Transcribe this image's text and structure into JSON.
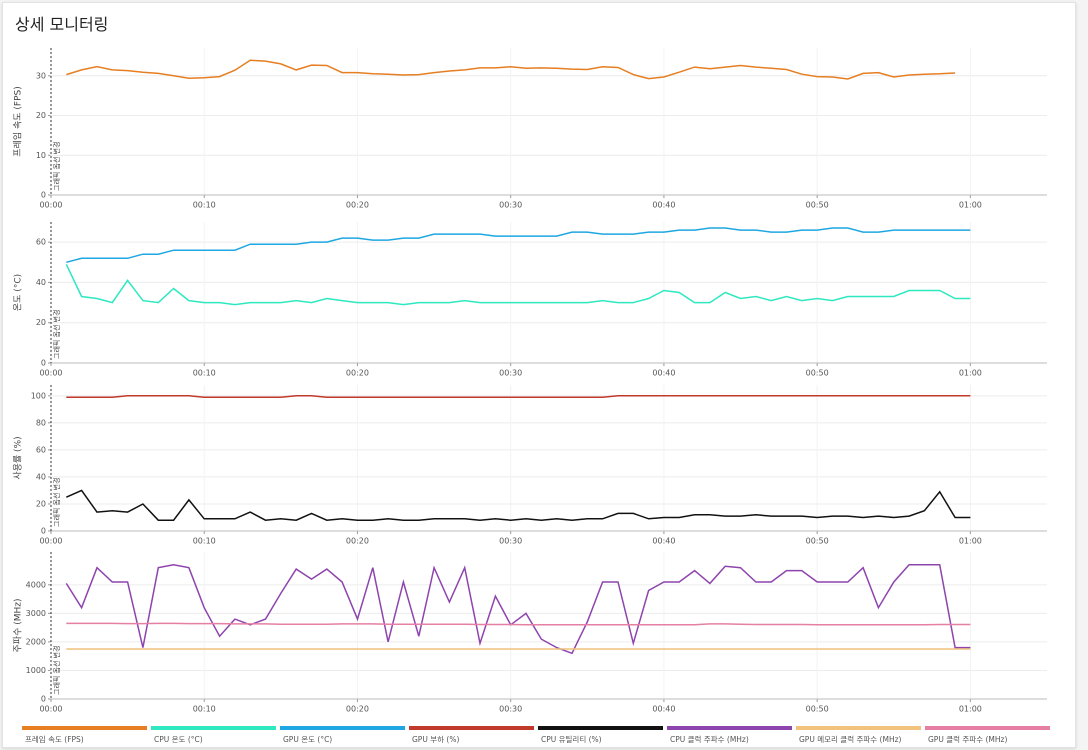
{
  "title": "상세 모니터링",
  "chart_data": [
    {
      "type": "line",
      "ylabel": "프레임 속도 (FPS)",
      "x": [
        1,
        2,
        3,
        4,
        5,
        6,
        7,
        8,
        9,
        10,
        11,
        12,
        13,
        14,
        15,
        16,
        17,
        18,
        19,
        20,
        21,
        22,
        23,
        24,
        25,
        26,
        27,
        28,
        29,
        30,
        31,
        32,
        33,
        34,
        35,
        36,
        37,
        38,
        39,
        40,
        41,
        42,
        43,
        44,
        45,
        46,
        47,
        48,
        49,
        50,
        51,
        52,
        53,
        54,
        55,
        56,
        57,
        58,
        59
      ],
      "series": [
        {
          "name": "프레임 속도 (FPS)",
          "color": "#e67e22",
          "values": [
            30.3,
            31.5,
            32.3,
            31.5,
            31.3,
            30.9,
            30.6,
            30.0,
            29.4,
            29.5,
            29.8,
            31.4,
            33.9,
            33.7,
            33.0,
            31.5,
            32.7,
            32.6,
            30.8,
            30.8,
            30.5,
            30.4,
            30.2,
            30.3,
            30.8,
            31.2,
            31.5,
            32.0,
            32.0,
            32.3,
            31.9,
            32.0,
            31.9,
            31.7,
            31.6,
            32.3,
            32.1,
            30.3,
            29.3,
            29.7,
            30.9,
            32.2,
            31.8,
            32.2,
            32.6,
            32.2,
            31.9,
            31.6,
            30.4,
            29.8,
            29.7,
            29.2,
            30.6,
            30.8,
            29.7,
            30.2,
            30.4,
            30.5,
            30.7
          ]
        }
      ],
      "xlim": [
        0,
        65
      ],
      "xticks": [
        {
          "value": 0,
          "label": "00:00"
        },
        {
          "value": 10,
          "label": "00:10"
        },
        {
          "value": 20,
          "label": "00:20"
        },
        {
          "value": 30,
          "label": "00:30"
        },
        {
          "value": 40,
          "label": "00:40"
        },
        {
          "value": 50,
          "label": "00:50"
        },
        {
          "value": 60,
          "label": "01:00"
        }
      ],
      "ylim": [
        0,
        37
      ],
      "yticks": [
        0,
        10,
        20,
        30
      ],
      "grid": true,
      "annotation": {
        "x": 0,
        "label": "그래픽 옵션 변경"
      }
    },
    {
      "type": "line",
      "ylabel": "온도 (°C)",
      "x": [
        1,
        2,
        3,
        4,
        5,
        6,
        7,
        8,
        9,
        10,
        11,
        12,
        13,
        14,
        15,
        16,
        17,
        18,
        19,
        20,
        21,
        22,
        23,
        24,
        25,
        26,
        27,
        28,
        29,
        30,
        31,
        32,
        33,
        34,
        35,
        36,
        37,
        38,
        39,
        40,
        41,
        42,
        43,
        44,
        45,
        46,
        47,
        48,
        49,
        50,
        51,
        52,
        53,
        54,
        55,
        56,
        57,
        58,
        59,
        60
      ],
      "series": [
        {
          "name": "CPU 온도 (°C)",
          "color": "#2ee8c0",
          "values": [
            49,
            33,
            32,
            30,
            41,
            31,
            30,
            37,
            31,
            30,
            30,
            29,
            30,
            30,
            30,
            31,
            30,
            32,
            31,
            30,
            30,
            30,
            29,
            30,
            30,
            30,
            31,
            30,
            30,
            30,
            30,
            30,
            30,
            30,
            30,
            31,
            30,
            30,
            32,
            36,
            35,
            30,
            30,
            35,
            32,
            33,
            31,
            33,
            31,
            32,
            31,
            33,
            33,
            33,
            33,
            36,
            36,
            36,
            32,
            32
          ]
        },
        {
          "name": "GPU 온도 (°C)",
          "color": "#1ea7e1",
          "values": [
            50,
            52,
            52,
            52,
            52,
            54,
            54,
            56,
            56,
            56,
            56,
            56,
            59,
            59,
            59,
            59,
            60,
            60,
            62,
            62,
            61,
            61,
            62,
            62,
            64,
            64,
            64,
            64,
            63,
            63,
            63,
            63,
            63,
            65,
            65,
            64,
            64,
            64,
            65,
            65,
            66,
            66,
            67,
            67,
            66,
            66,
            65,
            65,
            66,
            66,
            67,
            67,
            65,
            65,
            66,
            66,
            66,
            66,
            66,
            66
          ]
        }
      ],
      "xlim": [
        0,
        65
      ],
      "xticks": [
        {
          "value": 0,
          "label": "00:00"
        },
        {
          "value": 10,
          "label": "00:10"
        },
        {
          "value": 20,
          "label": "00:20"
        },
        {
          "value": 30,
          "label": "00:30"
        },
        {
          "value": 40,
          "label": "00:40"
        },
        {
          "value": 50,
          "label": "00:50"
        },
        {
          "value": 60,
          "label": "01:00"
        }
      ],
      "ylim": [
        0,
        70
      ],
      "yticks": [
        0,
        20,
        40,
        60
      ],
      "grid": true,
      "annotation": {
        "x": 0,
        "label": "그래픽 옵션 변경"
      }
    },
    {
      "type": "line",
      "ylabel": "사용률 (%)",
      "x": [
        1,
        2,
        3,
        4,
        5,
        6,
        7,
        8,
        9,
        10,
        11,
        12,
        13,
        14,
        15,
        16,
        17,
        18,
        19,
        20,
        21,
        22,
        23,
        24,
        25,
        26,
        27,
        28,
        29,
        30,
        31,
        32,
        33,
        34,
        35,
        36,
        37,
        38,
        39,
        40,
        41,
        42,
        43,
        44,
        45,
        46,
        47,
        48,
        49,
        50,
        51,
        52,
        53,
        54,
        55,
        56,
        57,
        58,
        59,
        60
      ],
      "series": [
        {
          "name": "GPU 부하 (%)",
          "color": "#c0392b",
          "values": [
            99,
            99,
            99,
            99,
            100,
            100,
            100,
            100,
            100,
            99,
            99,
            99,
            99,
            99,
            99,
            100,
            100,
            99,
            99,
            99,
            99,
            99,
            99,
            99,
            99,
            99,
            99,
            99,
            99,
            99,
            99,
            99,
            99,
            99,
            99,
            99,
            100,
            100,
            100,
            100,
            100,
            100,
            100,
            100,
            100,
            100,
            100,
            100,
            100,
            100,
            100,
            100,
            100,
            100,
            100,
            100,
            100,
            100,
            100,
            100
          ]
        },
        {
          "name": "CPU 유틸리티 (%)",
          "color": "#111111",
          "values": [
            25,
            30,
            14,
            15,
            14,
            20,
            8,
            8,
            23,
            9,
            9,
            9,
            14,
            8,
            9,
            8,
            13,
            8,
            9,
            8,
            8,
            9,
            8,
            8,
            9,
            9,
            9,
            8,
            9,
            8,
            9,
            8,
            9,
            8,
            9,
            9,
            13,
            13,
            9,
            10,
            10,
            12,
            12,
            11,
            11,
            12,
            11,
            11,
            11,
            10,
            11,
            11,
            10,
            11,
            10,
            11,
            15,
            29,
            10,
            10
          ]
        }
      ],
      "xlim": [
        0,
        65
      ],
      "xticks": [
        {
          "value": 0,
          "label": "00:00"
        },
        {
          "value": 10,
          "label": "00:10"
        },
        {
          "value": 20,
          "label": "00:20"
        },
        {
          "value": 30,
          "label": "00:30"
        },
        {
          "value": 40,
          "label": "00:40"
        },
        {
          "value": 50,
          "label": "00:50"
        },
        {
          "value": 60,
          "label": "01:00"
        }
      ],
      "ylim": [
        0,
        108
      ],
      "yticks": [
        0,
        20,
        40,
        60,
        80,
        100
      ],
      "grid": true,
      "annotation": {
        "x": 0,
        "label": "그래픽 옵션 변경"
      }
    },
    {
      "type": "line",
      "ylabel": "주파수 (MHz)",
      "x": [
        1,
        2,
        3,
        4,
        5,
        6,
        7,
        8,
        9,
        10,
        11,
        12,
        13,
        14,
        15,
        16,
        17,
        18,
        19,
        20,
        21,
        22,
        23,
        24,
        25,
        26,
        27,
        28,
        29,
        30,
        31,
        32,
        33,
        34,
        35,
        36,
        37,
        38,
        39,
        40,
        41,
        42,
        43,
        44,
        45,
        46,
        47,
        48,
        49,
        50,
        51,
        52,
        53,
        54,
        55,
        56,
        57,
        58,
        59,
        60
      ],
      "series": [
        {
          "name": "CPU 클럭 주파수 (MHz)",
          "color": "#8e44ad",
          "values": [
            4050,
            3200,
            4600,
            4100,
            4100,
            1800,
            4600,
            4700,
            4600,
            3200,
            2200,
            2800,
            2600,
            2800,
            3700,
            4550,
            4200,
            4550,
            4100,
            2800,
            4600,
            2000,
            4100,
            2200,
            4600,
            3400,
            4600,
            1950,
            3600,
            2600,
            3000,
            2100,
            1800,
            1600,
            2700,
            4100,
            4100,
            1950,
            3800,
            4100,
            4100,
            4500,
            4050,
            4650,
            4600,
            4100,
            4100,
            4500,
            4500,
            4100,
            4100,
            4100,
            4600,
            3200,
            4100,
            4700,
            4700,
            4700,
            1800,
            1800
          ]
        },
        {
          "name": "GPU 메모리 클럭 주파수 (MHz)",
          "color": "#f0c27b",
          "values": [
            1750,
            1750,
            1750,
            1750,
            1750,
            1750,
            1750,
            1750,
            1750,
            1750,
            1750,
            1750,
            1750,
            1750,
            1750,
            1750,
            1750,
            1750,
            1750,
            1750,
            1750,
            1750,
            1750,
            1750,
            1750,
            1750,
            1750,
            1750,
            1750,
            1750,
            1750,
            1750,
            1750,
            1750,
            1750,
            1750,
            1750,
            1750,
            1750,
            1750,
            1750,
            1750,
            1750,
            1750,
            1750,
            1750,
            1750,
            1750,
            1750,
            1750,
            1750,
            1750,
            1750,
            1750,
            1750,
            1750,
            1750,
            1750,
            1750,
            1750
          ]
        },
        {
          "name": "GPU 클럭 주파수 (MHz)",
          "color": "#e57fa4",
          "values": [
            2650,
            2650,
            2650,
            2650,
            2640,
            2640,
            2650,
            2650,
            2640,
            2640,
            2640,
            2630,
            2630,
            2630,
            2620,
            2620,
            2620,
            2620,
            2630,
            2630,
            2630,
            2620,
            2620,
            2620,
            2620,
            2620,
            2620,
            2610,
            2610,
            2610,
            2600,
            2600,
            2600,
            2600,
            2600,
            2600,
            2600,
            2600,
            2600,
            2600,
            2600,
            2600,
            2630,
            2630,
            2620,
            2610,
            2610,
            2610,
            2610,
            2600,
            2600,
            2600,
            2600,
            2600,
            2600,
            2600,
            2600,
            2610,
            2610,
            2610
          ]
        }
      ],
      "xlim": [
        0,
        65
      ],
      "xticks": [
        {
          "value": 0,
          "label": "00:00"
        },
        {
          "value": 10,
          "label": "00:10"
        },
        {
          "value": 20,
          "label": "00:20"
        },
        {
          "value": 30,
          "label": "00:30"
        },
        {
          "value": 40,
          "label": "00:40"
        },
        {
          "value": 50,
          "label": "00:50"
        },
        {
          "value": 60,
          "label": "01:00"
        }
      ],
      "ylim": [
        0,
        5150
      ],
      "yticks": [
        0,
        1000,
        2000,
        3000,
        4000
      ],
      "grid": true,
      "annotation": {
        "x": 0,
        "label": "그래픽 옵션 변경"
      }
    }
  ]
}
